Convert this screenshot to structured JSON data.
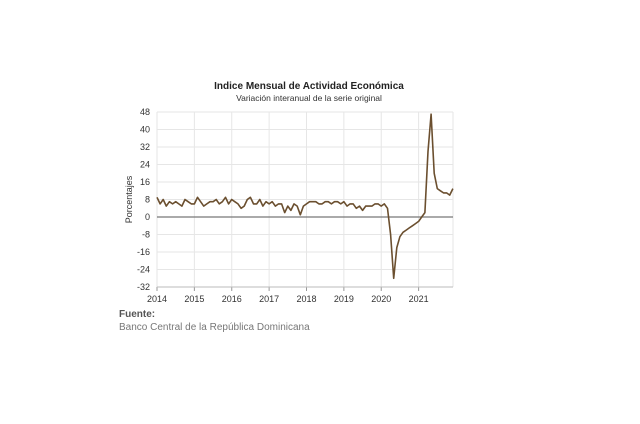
{
  "chart_data": {
    "type": "line",
    "title": "Indice Mensual de  Actividad Económica",
    "subtitle": "Variación interanual de la serie original",
    "ylabel": "Porcentajes",
    "xlabel": "",
    "ylim": [
      -32,
      48
    ],
    "xlim": [
      2014,
      2021.92
    ],
    "yticks": [
      "48",
      "40",
      "32",
      "24",
      "16",
      "8",
      "0",
      "-8",
      "-16",
      "-24",
      "-32"
    ],
    "ytick_values": [
      48,
      40,
      32,
      24,
      16,
      8,
      0,
      -8,
      -16,
      -24,
      -32
    ],
    "xticks": [
      "2014",
      "2015",
      "2016",
      "2017",
      "2018",
      "2019",
      "2020",
      "2021"
    ],
    "xtick_values": [
      2014,
      2015,
      2016,
      2017,
      2018,
      2019,
      2020,
      2021
    ],
    "grid": true,
    "zero_line": true,
    "line_color": "#6b4f2f",
    "series": [
      {
        "x": [
          2014.0,
          2014.083,
          2014.167,
          2014.25,
          2014.333,
          2014.417,
          2014.5,
          2014.583,
          2014.667,
          2014.75,
          2014.833,
          2014.917,
          2015.0,
          2015.083,
          2015.167,
          2015.25,
          2015.333,
          2015.417,
          2015.5,
          2015.583,
          2015.667,
          2015.75,
          2015.833,
          2015.917,
          2016.0,
          2016.083,
          2016.167,
          2016.25,
          2016.333,
          2016.417,
          2016.5,
          2016.583,
          2016.667,
          2016.75,
          2016.833,
          2016.917,
          2017.0,
          2017.083,
          2017.167,
          2017.25,
          2017.333,
          2017.417,
          2017.5,
          2017.583,
          2017.667,
          2017.75,
          2017.833,
          2017.917,
          2018.0,
          2018.083,
          2018.167,
          2018.25,
          2018.333,
          2018.417,
          2018.5,
          2018.583,
          2018.667,
          2018.75,
          2018.833,
          2018.917,
          2019.0,
          2019.083,
          2019.167,
          2019.25,
          2019.333,
          2019.417,
          2019.5,
          2019.583,
          2019.667,
          2019.75,
          2019.833,
          2019.917,
          2020.0,
          2020.083,
          2020.167,
          2020.25,
          2020.333,
          2020.417,
          2020.5,
          2020.583,
          2020.667,
          2020.75,
          2020.833,
          2020.917,
          2021.0,
          2021.083,
          2021.167,
          2021.25,
          2021.333,
          2021.417,
          2021.5,
          2021.583,
          2021.667,
          2021.75,
          2021.833,
          2021.917
        ],
        "values": [
          9,
          6,
          8,
          5,
          7,
          6,
          7,
          6,
          5,
          8,
          7,
          6,
          6,
          9,
          7,
          5,
          6,
          7,
          7,
          8,
          6,
          7,
          9,
          6,
          8,
          7,
          6,
          4,
          5,
          8,
          9,
          6,
          6,
          8,
          5,
          7,
          6,
          7,
          5,
          6,
          6,
          2,
          5,
          3,
          6,
          5,
          1,
          5,
          6,
          7,
          7,
          7,
          6,
          6,
          7,
          7,
          6,
          7,
          7,
          6,
          7,
          5,
          6,
          6,
          4,
          5,
          3,
          5,
          5,
          5,
          6,
          6,
          5,
          6,
          4,
          -8,
          -28,
          -14,
          -9,
          -7,
          -6,
          -5,
          -4,
          -3,
          -2,
          0,
          2,
          30,
          47,
          20,
          13,
          12,
          11,
          11,
          10,
          13
        ]
      }
    ]
  },
  "source": {
    "title": "Fuente:",
    "text": "Banco Central de la República Dominicana"
  }
}
